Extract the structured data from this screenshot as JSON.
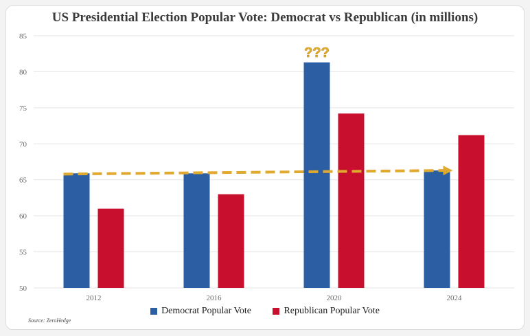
{
  "chart_data": {
    "type": "bar",
    "title": "US Presidential Election Popular Vote: Democrat vs Republican (in millions)",
    "categories": [
      "2012",
      "2016",
      "2020",
      "2024"
    ],
    "series": [
      {
        "name": "Democrat Popular Vote",
        "values": [
          65.9,
          65.9,
          81.3,
          66.3
        ],
        "color": "#2c5ea3"
      },
      {
        "name": "Republican Popular Vote",
        "values": [
          61.0,
          63.0,
          74.2,
          71.2
        ],
        "color": "#c8102e"
      }
    ],
    "ylim": [
      50,
      85
    ],
    "yticks": [
      50,
      55,
      60,
      65,
      70,
      75,
      80,
      85
    ],
    "grid": true,
    "legend_position": "bottom",
    "annotation": {
      "text": "???",
      "color": "#e8b230"
    },
    "trend_arrow": {
      "from_x": "2012",
      "to_x": "2024",
      "from_y": 65.8,
      "to_y": 66.3,
      "color": "#e0a930",
      "style": "dashed"
    },
    "source": "Source: ZeroHedge"
  }
}
